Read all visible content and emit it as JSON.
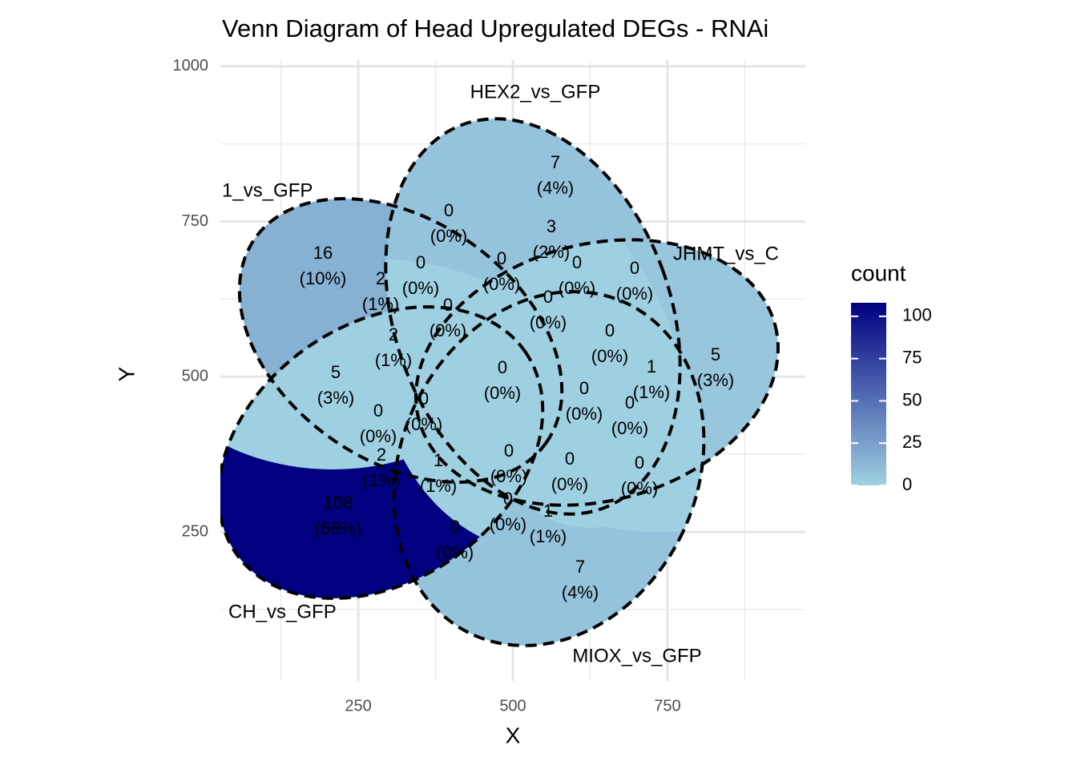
{
  "chart_data": {
    "type": "venn",
    "title": "Venn Diagram of Head Upregulated DEGs - RNAi",
    "x_label": "X",
    "y_label": "Y",
    "xlim": [
      27,
      973
    ],
    "ylim": [
      10,
      1010
    ],
    "xticks": [
      250,
      500,
      750
    ],
    "yticks": [
      250,
      500,
      750,
      1000
    ],
    "x_minor_ticks": [
      125,
      375,
      625,
      875
    ],
    "y_minor_ticks": [
      125,
      375,
      625,
      875
    ],
    "grid": true,
    "sets": [
      "1_vs_GFP",
      "HEX2_vs_GFP",
      "JHMT_vs_C",
      "MIOX_vs_GFP",
      "CH_vs_GFP"
    ],
    "regions": {
      "counts": [
        16,
        7,
        5,
        7,
        108,
        0,
        3,
        0,
        0,
        0,
        0,
        2,
        0,
        0,
        2,
        0,
        5,
        0,
        1,
        0,
        0,
        0,
        0,
        2,
        1,
        0,
        0,
        0,
        0,
        0,
        1
      ],
      "percent_labels": [
        "(10%)",
        "(4%)",
        "(3%)",
        "(4%)",
        "(68%)",
        "(0%)",
        "(2%)",
        "(0%)",
        "(0%)",
        "(0%)",
        "(0%)",
        "(1%)",
        "(0%)",
        "(0%)",
        "(1%)",
        "(0%)",
        "(3%)",
        "(0%)",
        "(1%)",
        "(0%)",
        "(0%)",
        "(0%)",
        "(0%)",
        "(1%)",
        "(1%)",
        "(0%)",
        "(0%)",
        "(0%)",
        "(0%)",
        "(0%)",
        "(1%)"
      ]
    },
    "legend": {
      "title": "count",
      "color_low": "#9fd0e2",
      "color_high": "#000080",
      "limits": [
        0,
        108
      ],
      "ticks": [
        0,
        25,
        50,
        75,
        100
      ]
    }
  }
}
